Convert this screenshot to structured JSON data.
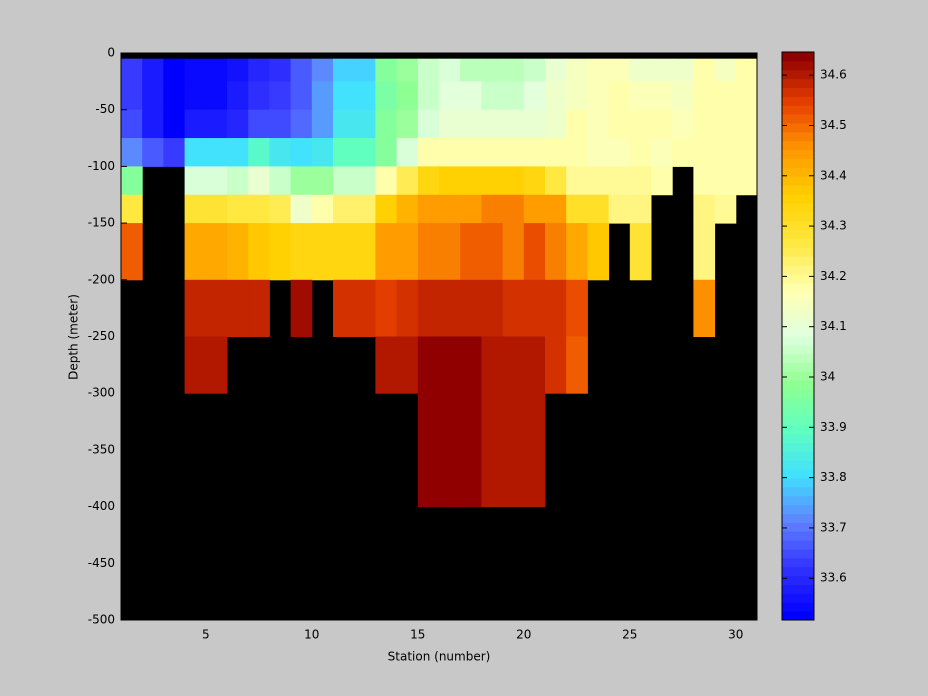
{
  "chart_data": {
    "type": "heatmap",
    "xlabel": "Station (number)",
    "ylabel": "Depth (meter)",
    "x": [
      1,
      2,
      3,
      4,
      5,
      6,
      7,
      8,
      9,
      10,
      11,
      12,
      13,
      14,
      15,
      16,
      17,
      18,
      19,
      20,
      21,
      22,
      23,
      24,
      25,
      26,
      27,
      28,
      29,
      30,
      31
    ],
    "y": [
      0,
      -5,
      -25,
      -50,
      -75,
      -100,
      -125,
      -150,
      -200,
      -250,
      -300,
      -400,
      -500
    ],
    "z": [
      [
        null,
        null,
        null,
        null,
        null,
        null,
        null,
        null,
        null,
        null,
        null,
        null,
        null,
        null,
        null,
        null,
        null,
        null,
        null,
        null,
        null,
        null,
        null,
        null,
        null,
        null,
        null,
        null,
        null,
        null
      ],
      [
        33.63,
        33.58,
        33.52,
        33.54,
        33.54,
        33.56,
        33.59,
        33.61,
        33.66,
        33.72,
        33.79,
        33.79,
        33.97,
        34.01,
        34.05,
        34.07,
        34.04,
        34.04,
        34.04,
        34.06,
        34.1,
        34.15,
        34.16,
        34.16,
        34.13,
        34.12,
        34.13,
        34.17,
        34.15,
        34.17
      ],
      [
        33.64,
        33.58,
        33.53,
        33.55,
        33.55,
        33.57,
        33.62,
        33.63,
        33.66,
        33.74,
        33.8,
        33.81,
        33.95,
        33.99,
        34.06,
        34.09,
        34.09,
        34.06,
        34.06,
        34.09,
        34.12,
        34.15,
        34.16,
        34.17,
        34.16,
        34.16,
        34.15,
        34.18,
        34.17,
        34.17
      ],
      [
        33.65,
        33.58,
        33.53,
        33.57,
        33.57,
        33.59,
        33.65,
        33.65,
        33.69,
        33.74,
        33.82,
        33.82,
        33.96,
        34.0,
        34.07,
        34.1,
        34.1,
        34.1,
        34.1,
        34.1,
        34.13,
        34.17,
        34.16,
        34.18,
        34.17,
        34.17,
        34.16,
        34.17,
        34.17,
        34.17
      ],
      [
        33.72,
        33.67,
        33.64,
        33.8,
        33.8,
        33.8,
        33.88,
        33.82,
        33.8,
        33.83,
        33.89,
        33.89,
        33.97,
        34.08,
        34.17,
        34.17,
        34.17,
        34.17,
        34.17,
        34.17,
        34.17,
        34.17,
        34.16,
        34.16,
        34.17,
        34.16,
        34.17,
        34.17,
        34.17,
        34.17
      ],
      [
        33.97,
        null,
        null,
        34.07,
        34.07,
        34.05,
        34.1,
        34.05,
        34.0,
        34.0,
        34.05,
        34.05,
        34.18,
        34.25,
        34.33,
        34.35,
        34.36,
        34.35,
        34.36,
        34.33,
        34.26,
        34.2,
        34.19,
        34.19,
        34.19,
        34.18,
        null,
        34.18,
        34.18,
        34.18
      ],
      [
        34.27,
        null,
        null,
        34.28,
        34.28,
        34.26,
        34.27,
        34.25,
        34.12,
        34.18,
        34.23,
        34.23,
        34.36,
        34.4,
        34.45,
        34.45,
        34.45,
        34.47,
        34.47,
        34.44,
        34.44,
        34.3,
        34.3,
        34.22,
        34.22,
        null,
        null,
        34.22,
        34.2,
        null
      ],
      [
        34.52,
        null,
        null,
        34.43,
        34.43,
        34.41,
        34.37,
        34.36,
        34.33,
        34.33,
        34.33,
        34.33,
        34.45,
        34.45,
        34.48,
        34.48,
        34.51,
        34.51,
        34.48,
        34.53,
        34.47,
        34.42,
        34.37,
        null,
        34.28,
        null,
        null,
        34.22,
        null,
        null
      ],
      [
        null,
        null,
        null,
        34.59,
        34.59,
        34.59,
        34.59,
        null,
        34.62,
        null,
        34.57,
        34.57,
        34.55,
        34.57,
        34.58,
        34.58,
        34.58,
        34.58,
        34.57,
        34.56,
        34.56,
        34.54,
        null,
        null,
        null,
        null,
        null,
        34.46,
        null,
        null
      ],
      [
        null,
        null,
        null,
        34.61,
        34.61,
        null,
        null,
        null,
        null,
        null,
        null,
        null,
        34.61,
        34.61,
        34.63,
        34.63,
        34.63,
        34.61,
        34.61,
        34.61,
        34.57,
        34.52,
        null,
        null,
        null,
        null,
        null,
        null,
        null,
        null
      ],
      [
        null,
        null,
        null,
        null,
        null,
        null,
        null,
        null,
        null,
        null,
        null,
        null,
        null,
        null,
        34.63,
        34.63,
        34.63,
        34.61,
        34.61,
        34.61,
        null,
        null,
        null,
        null,
        null,
        null,
        null,
        null,
        null,
        null
      ],
      [
        null,
        null,
        null,
        null,
        null,
        null,
        null,
        null,
        null,
        null,
        null,
        null,
        null,
        null,
        null,
        null,
        null,
        null,
        null,
        null,
        null,
        null,
        null,
        null,
        null,
        null,
        null,
        null,
        null,
        null
      ]
    ],
    "xlim": [
      1,
      31
    ],
    "xticks": [
      5,
      10,
      15,
      20,
      25,
      30
    ],
    "ylim": [
      -500,
      0
    ],
    "yticks": [
      -500,
      -450,
      -400,
      -350,
      -300,
      -250,
      -200,
      -150,
      -100,
      -50,
      0
    ],
    "clim": [
      33.517,
      34.646
    ],
    "cticks": [
      33.6,
      33.7,
      33.8,
      33.9,
      34,
      34.1,
      34.2,
      34.3,
      34.4,
      34.5,
      34.6
    ],
    "colormap": [
      "#0000ff",
      "#3030ff",
      "#6080ff",
      "#40e0ff",
      "#60ffc0",
      "#90ff90",
      "#e0ffe0",
      "#ffffb0",
      "#ffe840",
      "#ffd000",
      "#ff9800",
      "#e84000",
      "#900000"
    ],
    "background": "#000000"
  }
}
